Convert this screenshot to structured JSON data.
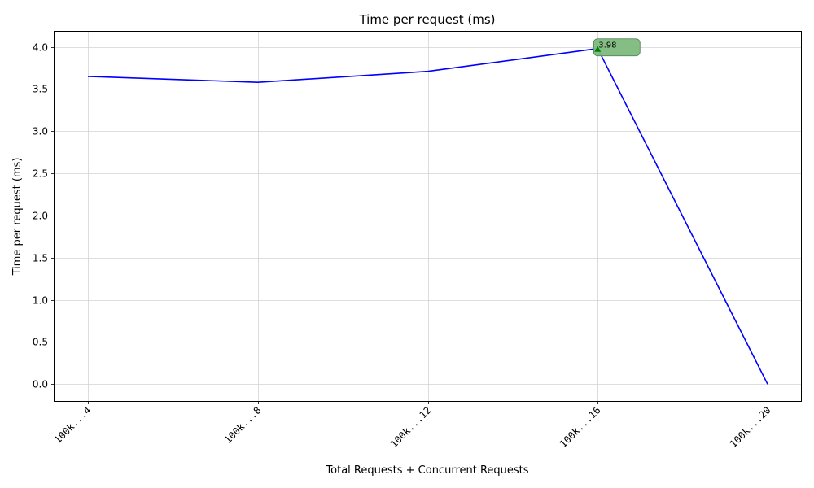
{
  "chart_data": {
    "type": "line",
    "title": "Time per request (ms)",
    "xlabel": "Total Requests + Concurrent Requests",
    "ylabel": "Time per request (ms)",
    "categories": [
      "100k...4",
      "100k...8",
      "100k...12",
      "100k...16",
      "100k...20"
    ],
    "series": [
      {
        "values": [
          3.65,
          3.58,
          3.71,
          3.98,
          0.0
        ],
        "color": "#0000ff"
      }
    ],
    "ylim": [
      -0.2,
      4.18
    ],
    "yticks": [
      0.0,
      0.5,
      1.0,
      1.5,
      2.0,
      2.5,
      3.0,
      3.5,
      4.0
    ],
    "ytick_labels": [
      "0.0",
      "0.5",
      "1.0",
      "1.5",
      "2.0",
      "2.5",
      "3.0",
      "3.5",
      "4.0"
    ],
    "grid": true,
    "annotation": {
      "category_index": 3,
      "value": 3.98,
      "text": "3.98",
      "marker_color": "#008000",
      "box_color": "#7dba7d"
    }
  }
}
